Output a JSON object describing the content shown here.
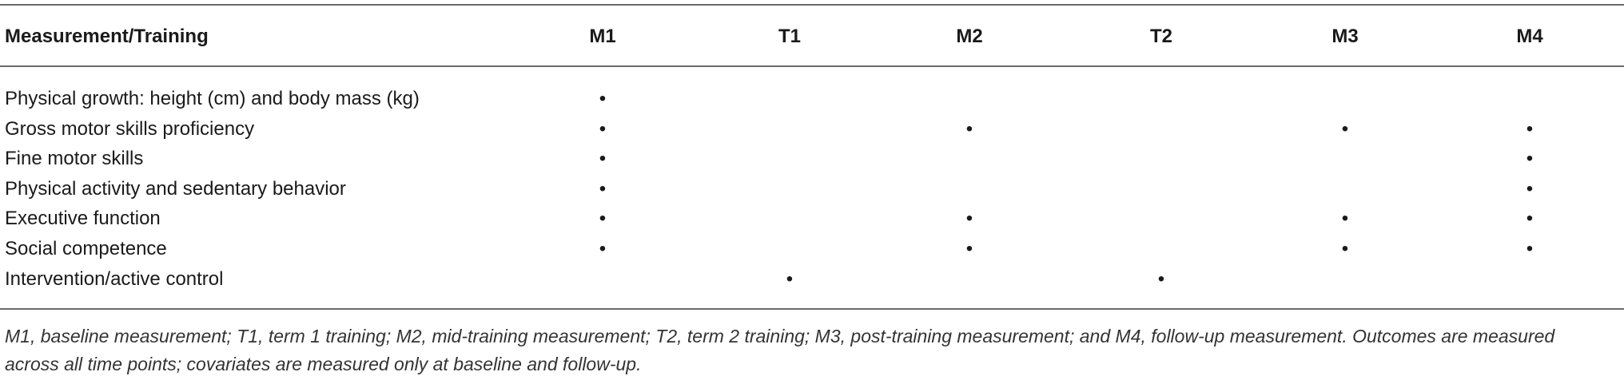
{
  "table": {
    "header": [
      "Measurement/Training",
      "M1",
      "T1",
      "M2",
      "T2",
      "M3",
      "M4"
    ],
    "rows": [
      {
        "label": "Physical growth: height (cm) and body mass (kg)",
        "cells": [
          "•",
          null,
          null,
          null,
          null,
          null
        ]
      },
      {
        "label": "Gross motor skills proficiency",
        "cells": [
          "•",
          null,
          "•",
          null,
          "•",
          "•"
        ]
      },
      {
        "label": "Fine motor skills",
        "cells": [
          "•",
          null,
          null,
          null,
          null,
          "•"
        ]
      },
      {
        "label": "Physical activity and sedentary behavior",
        "cells": [
          "•",
          null,
          null,
          null,
          null,
          "•"
        ]
      },
      {
        "label": "Executive function",
        "cells": [
          "•",
          null,
          "•",
          null,
          "•",
          "•"
        ]
      },
      {
        "label": "Social competence",
        "cells": [
          "•",
          null,
          "•",
          null,
          "•",
          "•"
        ]
      },
      {
        "label": "Intervention/active control",
        "cells": [
          null,
          "•",
          null,
          "•",
          null,
          null
        ]
      }
    ],
    "footnote": "M1, baseline measurement; T1, term 1 training; M2, mid-training measurement; T2, term 2 training; M3, post-training measurement; and M4, follow-up measurement. Outcomes are measured across all time points; covariates are measured only at baseline and follow-up."
  }
}
